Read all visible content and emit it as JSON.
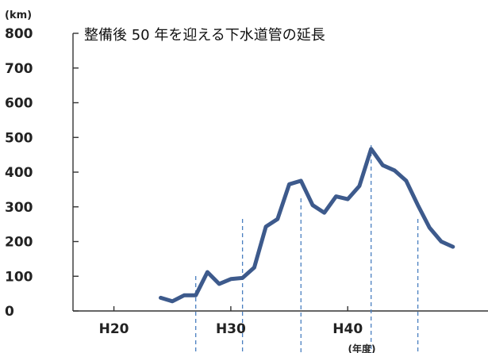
{
  "chart_data": {
    "type": "line",
    "title": "整備後 50 年を迎える下水道管の延長",
    "ylabel": "(km)",
    "xlabel": "(年度)",
    "ylim": [
      0,
      800
    ],
    "yticks": [
      0,
      100,
      200,
      300,
      400,
      500,
      600,
      700,
      800
    ],
    "xlim": [
      16.5,
      52
    ],
    "xticks": [
      {
        "value": 20,
        "label": "H20"
      },
      {
        "value": 30,
        "label": "H30"
      },
      {
        "value": 40,
        "label": "H40"
      }
    ],
    "dashed_markers": [
      27,
      31,
      36,
      42,
      46
    ],
    "line_color": "#3d5a8c",
    "marker_color": "#4a7fc0",
    "series": [
      {
        "x": [
          24,
          25,
          26,
          27,
          28,
          29,
          30,
          31,
          32,
          33,
          34,
          35,
          36,
          37,
          38,
          39,
          40,
          41,
          42,
          43,
          44,
          45,
          46,
          47,
          48,
          49
        ],
        "values": [
          38,
          28,
          45,
          45,
          112,
          78,
          92,
          95,
          125,
          243,
          265,
          365,
          375,
          305,
          283,
          330,
          322,
          360,
          467,
          420,
          405,
          375,
          305,
          240,
          200,
          185
        ]
      }
    ]
  }
}
